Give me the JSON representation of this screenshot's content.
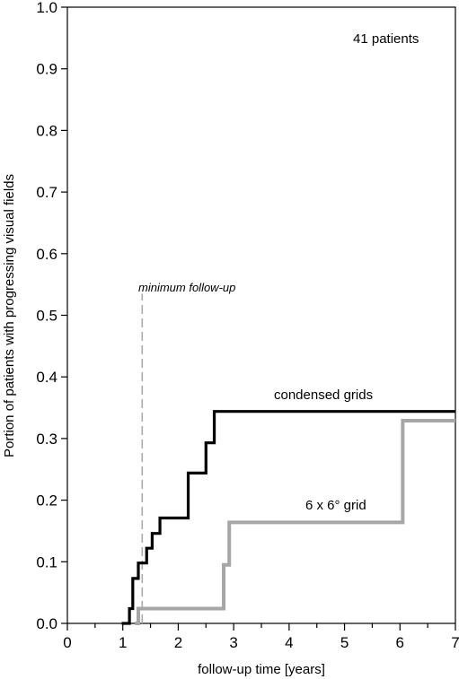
{
  "chart_data": {
    "type": "line",
    "title": "",
    "xlabel": "follow-up time [years]",
    "ylabel": "Portion of patients with progressing visual fields",
    "xlim": [
      0,
      7
    ],
    "ylim": [
      0,
      1.0
    ],
    "x_ticks": [
      "0",
      "1",
      "2",
      "3",
      "4",
      "5",
      "6",
      "7"
    ],
    "y_ticks": [
      "0.0",
      "0.1",
      "0.2",
      "0.3",
      "0.4",
      "0.5",
      "0.6",
      "0.7",
      "0.8",
      "0.9",
      "1.0"
    ],
    "grid": false,
    "step": true,
    "series": [
      {
        "name": "condensed grids",
        "color": "#000000",
        "x": [
          0.98,
          1.12,
          1.18,
          1.28,
          1.43,
          1.53,
          1.67,
          2.18,
          2.5,
          2.65,
          7.0
        ],
        "y": [
          0.0,
          0.024,
          0.073,
          0.098,
          0.122,
          0.146,
          0.171,
          0.244,
          0.293,
          0.344,
          0.344
        ]
      },
      {
        "name": "6 x 6° grid",
        "color": "#a6a6a6",
        "x": [
          1.22,
          1.28,
          2.82,
          2.92,
          3.02,
          6.05,
          7.0
        ],
        "y": [
          0.0,
          0.024,
          0.095,
          0.164,
          0.164,
          0.329,
          0.329
        ]
      }
    ],
    "vlines": [
      {
        "x": 1.35,
        "y_top": 0.535,
        "style": "dashed",
        "color": "#aaaaaa",
        "label": "minimum follow-up"
      }
    ],
    "annotations": {
      "patients": "41 patients",
      "condensed_label": "condensed grids",
      "grid6_label": "6 x 6° grid",
      "min_followup_label": "minimum follow-up"
    }
  }
}
